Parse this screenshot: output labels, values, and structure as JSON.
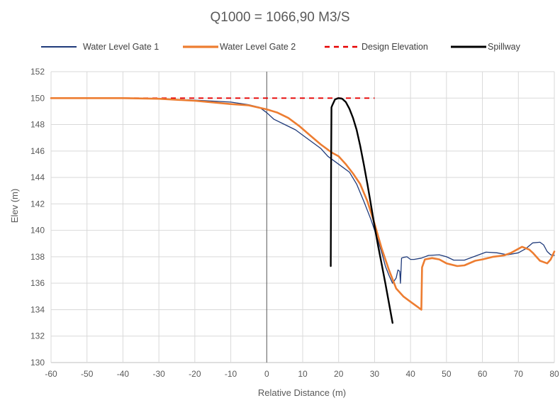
{
  "chart_data": {
    "type": "line",
    "title": "Q1000 = 1066,90 M3/S",
    "xlabel": "Relative Distance (m)",
    "ylabel": "Elev (m)",
    "xlim": [
      -60,
      80
    ],
    "ylim": [
      130,
      152
    ],
    "xticks": [
      -60,
      -50,
      -40,
      -30,
      -20,
      -10,
      0,
      10,
      20,
      30,
      40,
      50,
      60,
      70,
      80
    ],
    "yticks": [
      130,
      132,
      134,
      136,
      138,
      140,
      142,
      144,
      146,
      148,
      150,
      152
    ],
    "grid": true,
    "legend_position": "top",
    "series": [
      {
        "name": "Water Level Gate 1",
        "color": "#1f3a7a",
        "style": "solid",
        "points": [
          [
            -60,
            150
          ],
          [
            -40,
            150
          ],
          [
            -30,
            149.95
          ],
          [
            -20,
            149.85
          ],
          [
            -10,
            149.7
          ],
          [
            -5,
            149.5
          ],
          [
            -2,
            149.3
          ],
          [
            0,
            148.9
          ],
          [
            2,
            148.4
          ],
          [
            5,
            148.0
          ],
          [
            8,
            147.6
          ],
          [
            10,
            147.2
          ],
          [
            13,
            146.6
          ],
          [
            15,
            146.2
          ],
          [
            17,
            145.6
          ],
          [
            19,
            145.2
          ],
          [
            21,
            144.8
          ],
          [
            23,
            144.4
          ],
          [
            25,
            143.5
          ],
          [
            27,
            142.2
          ],
          [
            29,
            140.8
          ],
          [
            31,
            139.2
          ],
          [
            32,
            138.3
          ],
          [
            33,
            137.3
          ],
          [
            34,
            136.6
          ],
          [
            35,
            136.0
          ],
          [
            36,
            136.4
          ],
          [
            36.5,
            137.0
          ],
          [
            37,
            136.9
          ],
          [
            37.2,
            136.0
          ],
          [
            37.5,
            137.9
          ],
          [
            38,
            137.95
          ],
          [
            39,
            138.0
          ],
          [
            40,
            137.8
          ],
          [
            41,
            137.8
          ],
          [
            43,
            137.9
          ],
          [
            45,
            138.1
          ],
          [
            48,
            138.15
          ],
          [
            50,
            138.0
          ],
          [
            52,
            137.75
          ],
          [
            55,
            137.75
          ],
          [
            58,
            138.05
          ],
          [
            61,
            138.35
          ],
          [
            64,
            138.3
          ],
          [
            67,
            138.15
          ],
          [
            70,
            138.3
          ],
          [
            72,
            138.6
          ],
          [
            74,
            139.05
          ],
          [
            76,
            139.1
          ],
          [
            77,
            138.9
          ],
          [
            78,
            138.4
          ],
          [
            79,
            138.15
          ],
          [
            80,
            138.1
          ]
        ]
      },
      {
        "name": "Water Level Gate 2",
        "color": "#ed7d31",
        "style": "solid",
        "points": [
          [
            -60,
            150
          ],
          [
            -40,
            150
          ],
          [
            -30,
            149.95
          ],
          [
            -20,
            149.8
          ],
          [
            -10,
            149.55
          ],
          [
            -5,
            149.45
          ],
          [
            0,
            149.15
          ],
          [
            3,
            148.9
          ],
          [
            6,
            148.5
          ],
          [
            9,
            147.9
          ],
          [
            12,
            147.2
          ],
          [
            15,
            146.5
          ],
          [
            18,
            145.9
          ],
          [
            20,
            145.6
          ],
          [
            22,
            145.0
          ],
          [
            24,
            144.3
          ],
          [
            26,
            143.5
          ],
          [
            28,
            142.2
          ],
          [
            30,
            140.5
          ],
          [
            32,
            138.6
          ],
          [
            34,
            137.0
          ],
          [
            36,
            135.6
          ],
          [
            38,
            135.0
          ],
          [
            40,
            134.6
          ],
          [
            42,
            134.2
          ],
          [
            43,
            134.0
          ],
          [
            43.2,
            137.2
          ],
          [
            44,
            137.8
          ],
          [
            46,
            137.9
          ],
          [
            48,
            137.8
          ],
          [
            50,
            137.5
          ],
          [
            53,
            137.3
          ],
          [
            55,
            137.35
          ],
          [
            58,
            137.7
          ],
          [
            60,
            137.8
          ],
          [
            63,
            138.0
          ],
          [
            66,
            138.1
          ],
          [
            68,
            138.3
          ],
          [
            70,
            138.6
          ],
          [
            71,
            138.75
          ],
          [
            73,
            138.55
          ],
          [
            74,
            138.3
          ],
          [
            76,
            137.7
          ],
          [
            78,
            137.5
          ],
          [
            79,
            137.8
          ],
          [
            80,
            138.4
          ]
        ]
      },
      {
        "name": "Design Elevation",
        "color": "#e60000",
        "style": "dashed",
        "points": [
          [
            -60,
            150
          ],
          [
            30,
            150
          ]
        ]
      },
      {
        "name": "Spillway",
        "color": "#000000",
        "style": "solid",
        "points": [
          [
            17.8,
            137.3
          ],
          [
            17.9,
            145.0
          ],
          [
            18.0,
            149.3
          ],
          [
            18.3,
            149.5
          ],
          [
            19.0,
            149.9
          ],
          [
            20.0,
            150.0
          ],
          [
            21.0,
            149.95
          ],
          [
            22.0,
            149.7
          ],
          [
            23.0,
            149.2
          ],
          [
            24.0,
            148.5
          ],
          [
            25.0,
            147.6
          ],
          [
            26.0,
            146.4
          ],
          [
            27.0,
            145.0
          ],
          [
            28.0,
            143.5
          ],
          [
            29.0,
            141.9
          ],
          [
            30.0,
            140.3
          ],
          [
            31.0,
            138.8
          ],
          [
            32.0,
            137.4
          ],
          [
            33.0,
            136.0
          ],
          [
            34.0,
            134.5
          ],
          [
            35.0,
            133.0
          ]
        ]
      }
    ]
  }
}
